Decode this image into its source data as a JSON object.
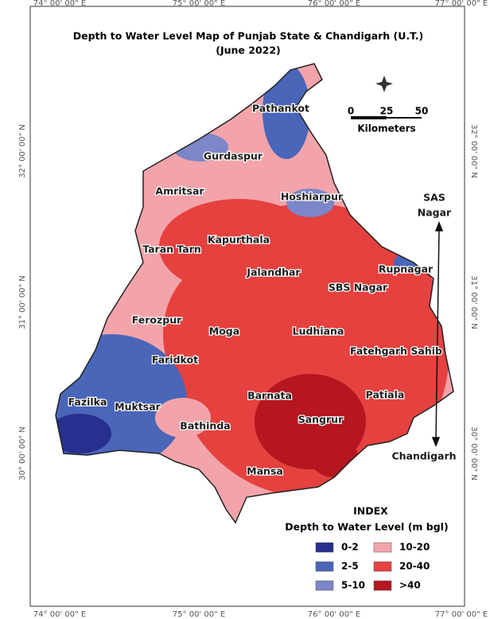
{
  "title": "Depth to Water Level Map of Punjab State & Chandigarh (U.T.)",
  "subtitle": "(June 2022)",
  "top_axis_labels": [
    "74° 00' 00\" E",
    "75° 00' 00\" E",
    "76° 00' 00\" E",
    "77° 00' 00\" E"
  ],
  "bottom_axis_labels": [
    "74° 00' 00\" E",
    "75° 00' 00\" E",
    "76° 00' 00\" E",
    "77° 00' 00\" E"
  ],
  "left_axis_labels": [
    "32° 00' 00\" N",
    "31° 00' 00\" N",
    "30° 00' 00\" N"
  ],
  "right_axis_labels": [
    "32° 00' 00\" N",
    "31° 00' 00\" N",
    "30° 00' 00\" N"
  ],
  "scale_bar": {
    "ticks": [
      "0",
      "25",
      "50"
    ],
    "unit": "Kilometers"
  },
  "districts": [
    "Pathankot",
    "Gurdaspur",
    "Amritsar",
    "Hoshiarpur",
    "Kapurthala",
    "Taran Tarn",
    "Jalandhar",
    "Rupnagar",
    "SBS Nagar",
    "Ferozpur",
    "Moga",
    "Ludhiana",
    "Fatehgarh Sahib",
    "Faridkot",
    "Barnata",
    "Patiala",
    "Fazilka",
    "Muktsar",
    "Bathinda",
    "Sangrur",
    "Mansa"
  ],
  "sas_nagar_lines": [
    "SAS",
    "Nagar"
  ],
  "chandigarh": "Chandigarh",
  "legend": {
    "title": "INDEX",
    "subtitle": "Depth to Water Level (m bgl)",
    "items": [
      {
        "label": "0-2",
        "color": "#27308f"
      },
      {
        "label": "2-5",
        "color": "#4a66b9"
      },
      {
        "label": "5-10",
        "color": "#7c86c9"
      },
      {
        "label": "10-20",
        "color": "#f3a4aa"
      },
      {
        "label": "20-40",
        "color": "#e5413f"
      },
      {
        "label": ">40",
        "color": "#b5161f"
      }
    ]
  }
}
